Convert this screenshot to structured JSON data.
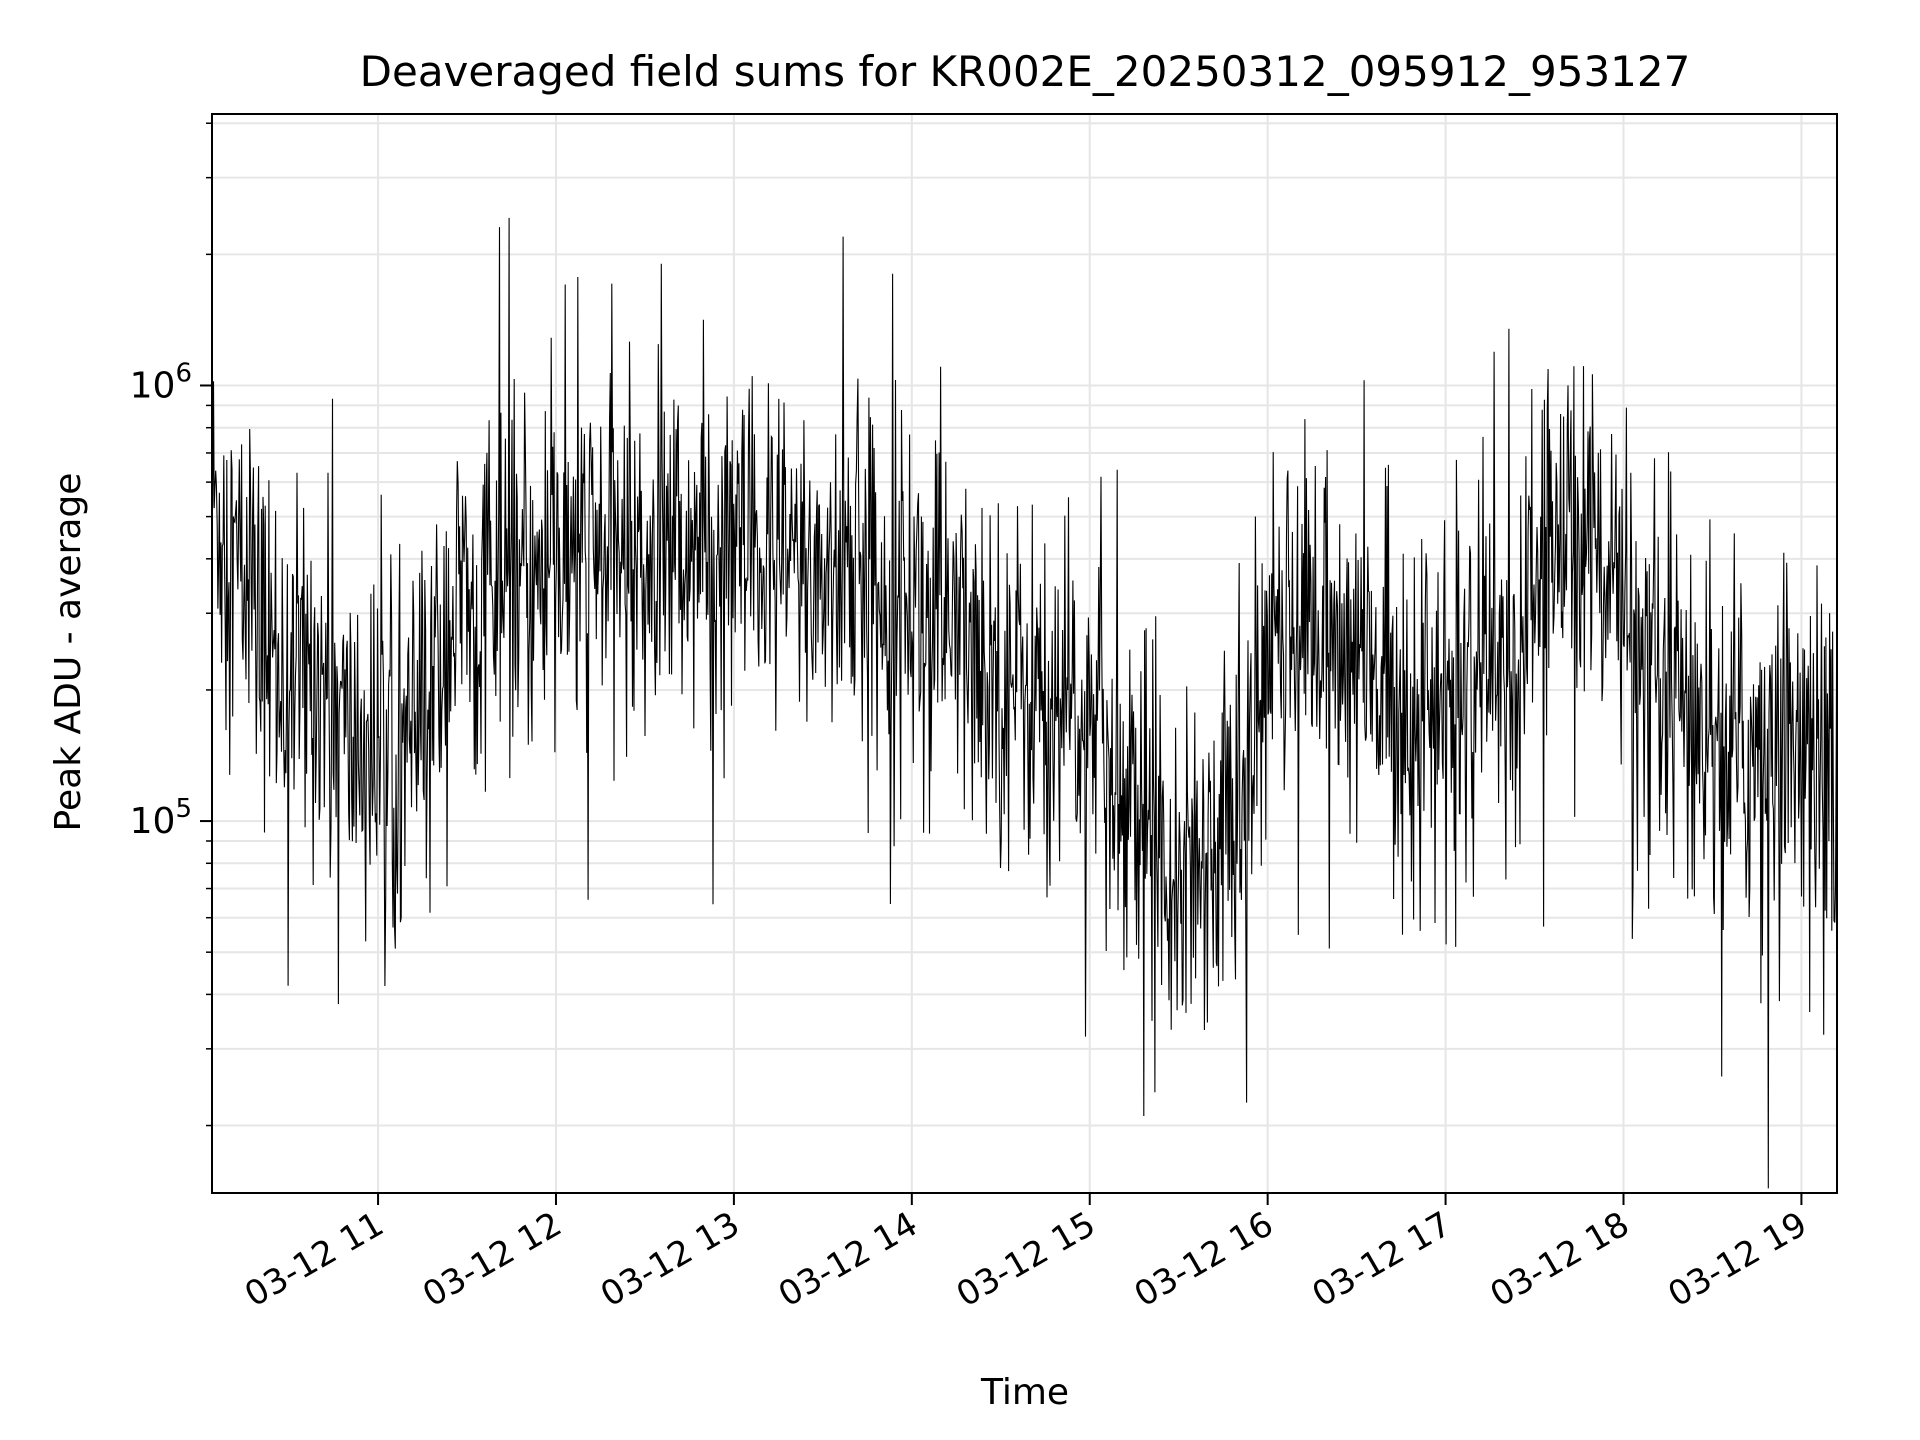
{
  "chart_data": {
    "type": "line",
    "title": "Deaveraged field sums for KR002E_20250312_095912_953127",
    "xlabel": "Time",
    "ylabel": "Peak ADU - average",
    "x_axis": {
      "kind": "datetime",
      "range": [
        "2025-03-12T10:04",
        "2025-03-12T19:12"
      ],
      "tick_labels": [
        "03-12 11",
        "03-12 12",
        "03-12 13",
        "03-12 14",
        "03-12 15",
        "03-12 16",
        "03-12 17",
        "03-12 18",
        "03-12 19"
      ],
      "tick_values": [
        "2025-03-12T11:00",
        "2025-03-12T12:00",
        "2025-03-12T13:00",
        "2025-03-12T14:00",
        "2025-03-12T15:00",
        "2025-03-12T16:00",
        "2025-03-12T17:00",
        "2025-03-12T18:00",
        "2025-03-12T19:00"
      ]
    },
    "y_axis": {
      "scale": "log",
      "range": [
        14000,
        4200000
      ],
      "major_ticks": [
        100000,
        1000000
      ],
      "major_tick_labels": [
        {
          "base": "10",
          "exp": "5"
        },
        {
          "base": "10",
          "exp": "6"
        }
      ]
    },
    "grid": true,
    "line_color": "#000000",
    "series": [
      {
        "x": [
          "2025-03-12T10:04",
          "2025-03-12T10:20",
          "2025-03-12T10:30",
          "2025-03-12T10:40",
          "2025-03-12T10:50",
          "2025-03-12T11:00",
          "2025-03-12T11:15",
          "2025-03-12T11:25",
          "2025-03-12T11:40",
          "2025-03-12T12:00",
          "2025-03-12T12:20",
          "2025-03-12T12:40",
          "2025-03-12T13:00",
          "2025-03-12T13:20",
          "2025-03-12T13:40",
          "2025-03-12T14:00",
          "2025-03-12T14:20",
          "2025-03-12T14:40",
          "2025-03-12T15:00",
          "2025-03-12T15:15",
          "2025-03-12T15:30",
          "2025-03-12T15:45",
          "2025-03-12T15:55",
          "2025-03-12T16:05",
          "2025-03-12T16:20",
          "2025-03-12T16:40",
          "2025-03-12T17:00",
          "2025-03-12T17:20",
          "2025-03-12T17:40",
          "2025-03-12T17:55",
          "2025-03-12T18:05",
          "2025-03-12T18:20",
          "2025-03-12T18:40",
          "2025-03-12T19:00",
          "2025-03-12T19:12"
        ],
        "y": [
          550000,
          280000,
          210000,
          220000,
          150000,
          140000,
          160000,
          300000,
          330000,
          370000,
          420000,
          430000,
          400000,
          380000,
          370000,
          330000,
          240000,
          200000,
          160000,
          110000,
          80000,
          90000,
          140000,
          320000,
          260000,
          200000,
          170000,
          210000,
          500000,
          420000,
          190000,
          170000,
          140000,
          170000,
          120000
        ]
      }
    ]
  }
}
